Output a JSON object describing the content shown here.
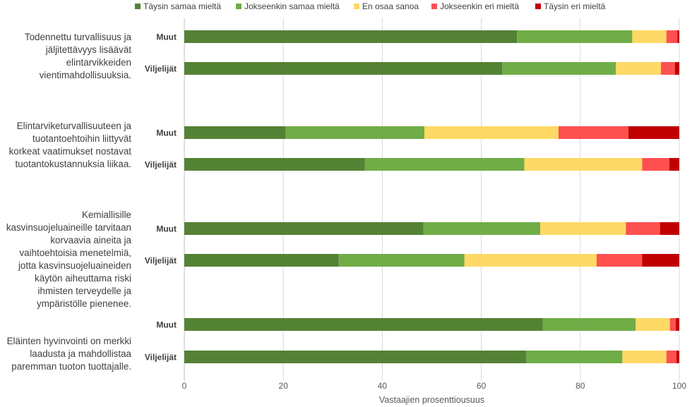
{
  "chart_data": {
    "type": "bar",
    "orientation": "horizontal",
    "stacked": true,
    "xlabel": "Vastaajien prosenttiousuus",
    "xlim": [
      0,
      100
    ],
    "xticks": [
      "0",
      "20",
      "40",
      "60",
      "80",
      "100"
    ],
    "grid": true,
    "legend_position": "top",
    "series": [
      {
        "name": "Täysin samaa mieltä",
        "color": "#548235"
      },
      {
        "name": "Jokseenkin samaa mieltä",
        "color": "#70AD47"
      },
      {
        "name": "En osaa sanoa",
        "color": "#FFD966"
      },
      {
        "name": "Jokseenkin eri mieltä",
        "color": "#FF5050"
      },
      {
        "name": "Täysin eri mieltä",
        "color": "#C00000"
      }
    ],
    "groups": [
      {
        "question": "Todennettu turvallisuus ja jäljitettävyys lisäävät elintarvikkeiden vientimahdollisuuksia.",
        "bars": [
          {
            "label": "Muut",
            "values": [
              67.2,
              23.3,
              6.9,
              2.2,
              0.4
            ]
          },
          {
            "label": "Viljelijät",
            "values": [
              64.2,
              23.0,
              9.1,
              2.8,
              0.9
            ]
          }
        ]
      },
      {
        "question": "Elintarviketurvallisuuteen ja tuotantoehtoihin liittyvät korkeat vaatimukset nostavat tuotantokustannuksia liikaa.",
        "bars": [
          {
            "label": "Muut",
            "values": [
              20.5,
              28.0,
              27.1,
              14.1,
              10.3
            ]
          },
          {
            "label": "Viljelijät",
            "values": [
              36.5,
              32.2,
              23.8,
              5.5,
              2.0
            ]
          }
        ]
      },
      {
        "question": "Kemiallisille kasvinsuojeluaineille tarvitaan korvaavia aineita ja vaihtoehtoisia menetelmiä, jotta kasvinsuojeluaineiden käytön aiheuttama riski ihmisten terveydelle ja ympäristölle pienenee.",
        "bars": [
          {
            "label": "Muut",
            "values": [
              48.3,
              23.6,
              17.3,
              6.9,
              3.9
            ]
          },
          {
            "label": "Viljelijät",
            "values": [
              31.2,
              25.4,
              26.7,
              9.2,
              7.5
            ]
          }
        ]
      },
      {
        "question": "Eläinten hyvinvointi on merkki laadusta ja mahdollistaa paremman tuoton tuottajalle.",
        "bars": [
          {
            "label": "Muut",
            "values": [
              72.4,
              18.8,
              6.9,
              1.2,
              0.7
            ]
          },
          {
            "label": "Viljelijät",
            "values": [
              69.1,
              19.4,
              8.9,
              2.0,
              0.6
            ]
          }
        ]
      }
    ]
  }
}
